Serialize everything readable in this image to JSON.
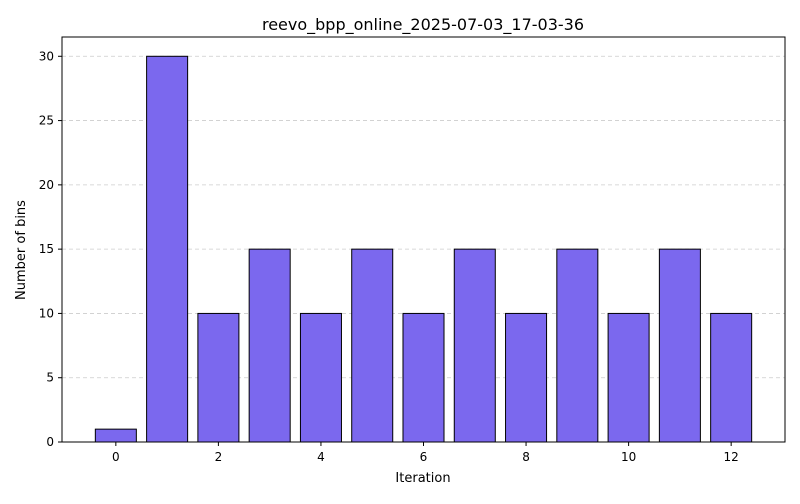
{
  "chart_data": {
    "type": "bar",
    "title": "reevo_bpp_online_2025-07-03_17-03-36",
    "xlabel": "Iteration",
    "ylabel": "Number of bins",
    "categories": [
      0,
      1,
      2,
      3,
      4,
      5,
      6,
      7,
      8,
      9,
      10,
      11,
      12
    ],
    "values": [
      1,
      30,
      10,
      15,
      10,
      15,
      10,
      15,
      10,
      15,
      10,
      15,
      10
    ],
    "xticks": [
      0,
      2,
      4,
      6,
      8,
      10,
      12
    ],
    "yticks": [
      0,
      5,
      10,
      15,
      20,
      25,
      30
    ],
    "xlim": [
      -1.05,
      13.05
    ],
    "ylim": [
      0,
      31.5
    ],
    "grid": "y-dashed",
    "bar_color": "#7b68ee",
    "bar_edge_color": "#000000"
  }
}
